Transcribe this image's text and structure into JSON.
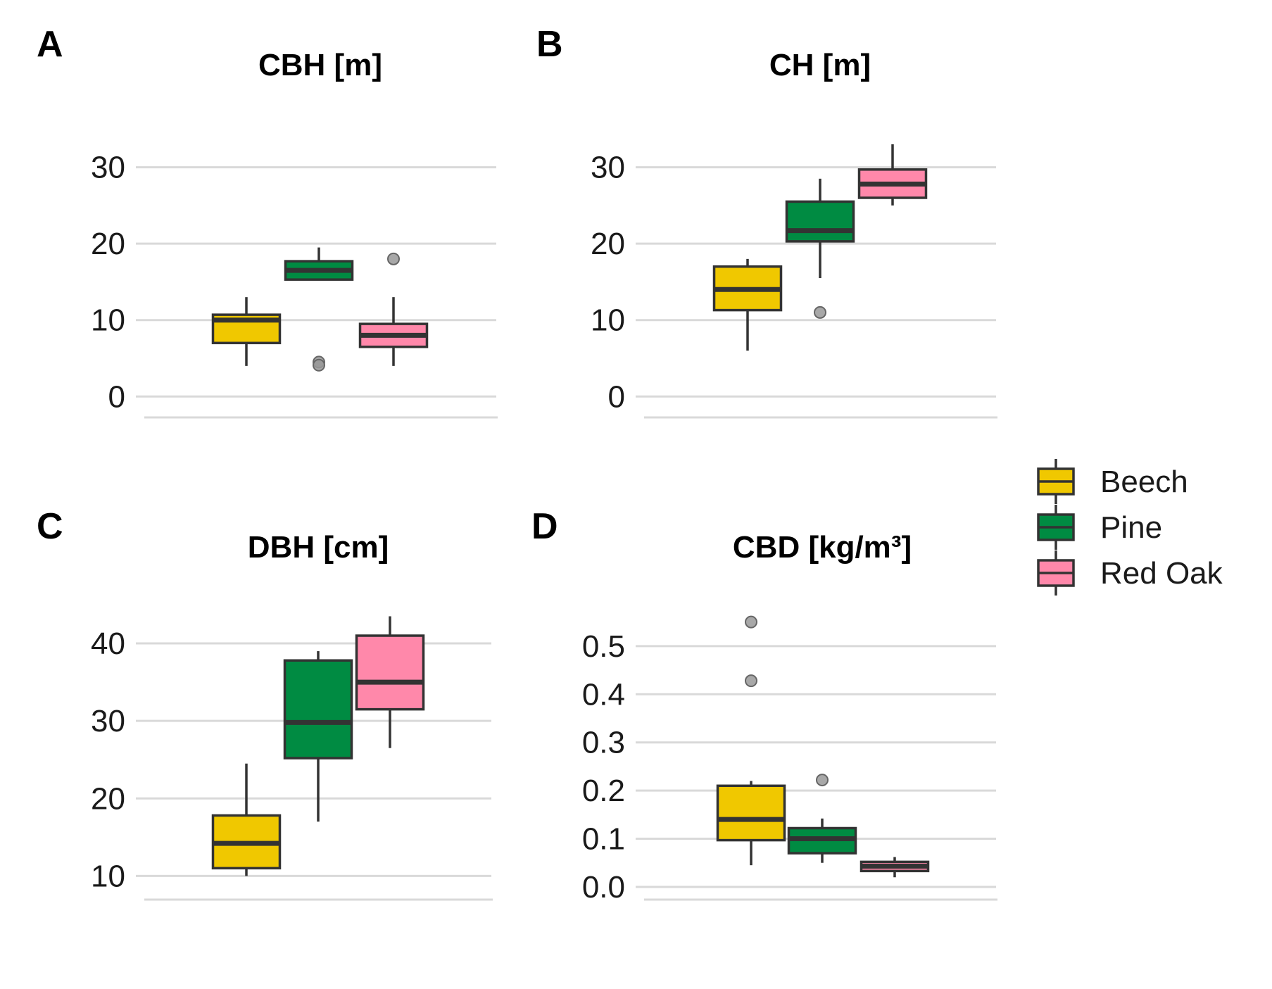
{
  "colors": {
    "Beech": "#f0c800",
    "Pine": "#008b42",
    "Red Oak": "#ff88aa"
  },
  "legend": {
    "position": "right",
    "items": [
      {
        "label": "Beech",
        "color_key": "Beech"
      },
      {
        "label": "Pine",
        "color_key": "Pine"
      },
      {
        "label": "Red Oak",
        "color_key": "Red Oak"
      }
    ]
  },
  "chart_data": [
    {
      "panel": "A",
      "type": "box",
      "title": "CBH [m]",
      "ylim": [
        -2,
        33
      ],
      "yticks": [
        0,
        10,
        20,
        30
      ],
      "ytick_labels": [
        "0",
        "10",
        "20",
        "30"
      ],
      "grid": true,
      "series": [
        {
          "name": "Beech",
          "min": 4,
          "q1": 7,
          "median": 10,
          "q3": 10.7,
          "max": 13,
          "outliers": []
        },
        {
          "name": "Pine",
          "min": 15.3,
          "q1": 15.3,
          "median": 16.5,
          "q3": 17.7,
          "max": 19.5,
          "outliers": [
            4.5,
            4.1
          ]
        },
        {
          "name": "Red Oak",
          "min": 4,
          "q1": 6.5,
          "median": 8,
          "q3": 9.5,
          "max": 13,
          "outliers": [
            18
          ]
        }
      ]
    },
    {
      "panel": "B",
      "type": "box",
      "title": "CH [m]",
      "ylim": [
        -2,
        33
      ],
      "yticks": [
        0,
        10,
        20,
        30
      ],
      "ytick_labels": [
        "0",
        "10",
        "20",
        "30"
      ],
      "grid": true,
      "series": [
        {
          "name": "Beech",
          "min": 6,
          "q1": 11.3,
          "median": 14,
          "q3": 17,
          "max": 18,
          "outliers": []
        },
        {
          "name": "Pine",
          "min": 15.5,
          "q1": 20.3,
          "median": 21.7,
          "q3": 25.5,
          "max": 28.5,
          "outliers": [
            11
          ]
        },
        {
          "name": "Red Oak",
          "min": 25,
          "q1": 26,
          "median": 27.8,
          "q3": 29.7,
          "max": 33,
          "outliers": []
        }
      ]
    },
    {
      "panel": "C",
      "type": "box",
      "title": "DBH [cm]",
      "ylim": [
        8.4,
        44
      ],
      "yticks": [
        10,
        20,
        30,
        40
      ],
      "ytick_labels": [
        "10",
        "20",
        "30",
        "40"
      ],
      "grid": true,
      "series": [
        {
          "name": "Beech",
          "min": 10,
          "q1": 11,
          "median": 14.2,
          "q3": 17.8,
          "max": 24.5,
          "outliers": []
        },
        {
          "name": "Pine",
          "min": 17,
          "q1": 25.2,
          "median": 29.8,
          "q3": 37.8,
          "max": 39,
          "outliers": []
        },
        {
          "name": "Red Oak",
          "min": 26.5,
          "q1": 31.5,
          "median": 35,
          "q3": 41,
          "max": 43.5,
          "outliers": []
        }
      ]
    },
    {
      "panel": "D",
      "type": "box",
      "title": "CBD [kg/m³]",
      "ylim": [
        -0.003,
        0.57
      ],
      "yticks": [
        0.0,
        0.1,
        0.2,
        0.3,
        0.4,
        0.5
      ],
      "ytick_labels": [
        "0.0",
        "0.1",
        "0.2",
        "0.3",
        "0.4",
        "0.5"
      ],
      "grid": true,
      "series": [
        {
          "name": "Beech",
          "min": 0.045,
          "q1": 0.097,
          "median": 0.14,
          "q3": 0.21,
          "max": 0.22,
          "outliers": [
            0.55,
            0.428
          ]
        },
        {
          "name": "Pine",
          "min": 0.05,
          "q1": 0.07,
          "median": 0.1,
          "q3": 0.122,
          "max": 0.142,
          "outliers": [
            0.222
          ]
        },
        {
          "name": "Red Oak",
          "min": 0.02,
          "q1": 0.033,
          "median": 0.043,
          "q3": 0.052,
          "max": 0.062,
          "outliers": []
        }
      ]
    }
  ]
}
